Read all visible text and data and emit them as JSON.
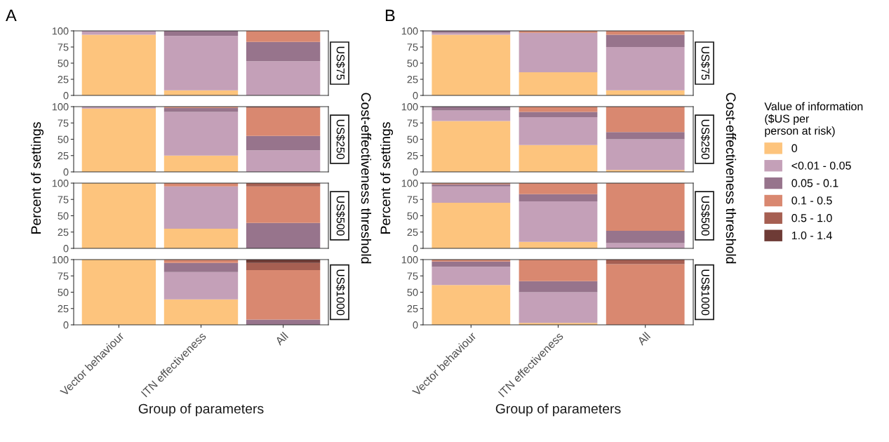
{
  "chart_data": [
    {
      "type": "bar",
      "stacked": true,
      "title": "A",
      "ylabel": "Percent of settings",
      "y2label": "Cost-effectiveness threshold",
      "annotations": [
        "US$75"
      ],
      "categories": [
        null,
        null,
        null
      ],
      "ylim": [
        0,
        100
      ],
      "yticks": [
        0,
        25,
        50,
        75,
        100
      ],
      "tick_labels": "y",
      "series": [
        {
          "color": "#fdc47d",
          "values": [
            94,
            8,
            0
          ]
        },
        {
          "color": "#c4a0b8",
          "values": [
            6,
            84,
            53
          ]
        },
        {
          "color": "#97748c",
          "values": [
            0,
            8,
            30
          ]
        },
        {
          "color": "#d98870",
          "values": [
            0,
            0,
            17
          ]
        },
        {
          "color": "#a65f52",
          "values": [
            0,
            0,
            0
          ]
        },
        {
          "color": "#6e3b36",
          "values": [
            0,
            0,
            0
          ]
        }
      ]
    },
    {
      "type": "bar",
      "stacked": true,
      "annotations": [
        "US$250"
      ],
      "categories": [
        null,
        null,
        null
      ],
      "ylim": [
        0,
        100
      ],
      "yticks": [
        0,
        25,
        50,
        75,
        100
      ],
      "tick_labels": "y",
      "series": [
        {
          "color": "#fdc47d",
          "values": [
            97,
            25,
            0
          ]
        },
        {
          "color": "#c4a0b8",
          "values": [
            3,
            67,
            33
          ]
        },
        {
          "color": "#97748c",
          "values": [
            0,
            6,
            22
          ]
        },
        {
          "color": "#d98870",
          "values": [
            0,
            2,
            43
          ]
        },
        {
          "color": "#a65f52",
          "values": [
            0,
            0,
            2
          ]
        },
        {
          "color": "#6e3b36",
          "values": [
            0,
            0,
            0
          ]
        }
      ]
    },
    {
      "type": "bar",
      "stacked": true,
      "annotations": [
        "US$500"
      ],
      "categories": [
        null,
        null,
        null
      ],
      "ylim": [
        0,
        100
      ],
      "yticks": [
        0,
        25,
        50,
        75,
        100
      ],
      "tick_labels": "y",
      "series": [
        {
          "color": "#fdc47d",
          "values": [
            100,
            30,
            0
          ]
        },
        {
          "color": "#c4a0b8",
          "values": [
            0,
            65,
            0
          ]
        },
        {
          "color": "#97748c",
          "values": [
            0,
            0,
            39
          ]
        },
        {
          "color": "#d98870",
          "values": [
            0,
            5,
            56
          ]
        },
        {
          "color": "#a65f52",
          "values": [
            0,
            0,
            5
          ]
        },
        {
          "color": "#6e3b36",
          "values": [
            0,
            0,
            0
          ]
        }
      ]
    },
    {
      "type": "bar",
      "stacked": true,
      "xlabel": "Group of parameters",
      "annotations": [
        "US$1000"
      ],
      "categories": [
        "Vector behaviour",
        "ITN effectiveness",
        "All"
      ],
      "ylim": [
        0,
        100
      ],
      "yticks": [
        0,
        25,
        50,
        75,
        100
      ],
      "series": [
        {
          "color": "#fdc47d",
          "values": [
            100,
            39,
            0
          ]
        },
        {
          "color": "#c4a0b8",
          "values": [
            0,
            42,
            0
          ]
        },
        {
          "color": "#97748c",
          "values": [
            0,
            14,
            8
          ]
        },
        {
          "color": "#d98870",
          "values": [
            0,
            5,
            76
          ]
        },
        {
          "color": "#a65f52",
          "values": [
            0,
            0,
            11
          ]
        },
        {
          "color": "#6e3b36",
          "values": [
            0,
            0,
            5
          ]
        }
      ]
    },
    {
      "type": "bar",
      "stacked": true,
      "title": "B",
      "ylabel": "Percent of settings",
      "y2label": "Cost-effectiveness threshold",
      "annotations": [
        "US$75"
      ],
      "categories": [
        null,
        null,
        null
      ],
      "ylim": [
        0,
        100
      ],
      "yticks": [
        0,
        25,
        50,
        75,
        100
      ],
      "tick_labels": "y",
      "series": [
        {
          "color": "#fdc47d",
          "values": [
            94,
            36,
            8
          ]
        },
        {
          "color": "#c4a0b8",
          "values": [
            3,
            61,
            67
          ]
        },
        {
          "color": "#97748c",
          "values": [
            3,
            0,
            19
          ]
        },
        {
          "color": "#d98870",
          "values": [
            0,
            3,
            6
          ]
        },
        {
          "color": "#a65f52",
          "values": [
            0,
            0,
            0
          ]
        },
        {
          "color": "#6e3b36",
          "values": [
            0,
            0,
            0
          ]
        }
      ]
    },
    {
      "type": "bar",
      "stacked": true,
      "legend": "right",
      "legend_title": "Value of information\n($US per\nperson at risk)",
      "annotations": [
        "US$250"
      ],
      "categories": [
        null,
        null,
        null
      ],
      "ylim": [
        0,
        100
      ],
      "yticks": [
        0,
        25,
        50,
        75,
        100
      ],
      "tick_labels": "y",
      "series": [
        {
          "name": "0",
          "color": "#fdc47d",
          "values": [
            78,
            41,
            3
          ]
        },
        {
          "name": "<0.01 - 0.05",
          "color": "#c4a0b8",
          "values": [
            16,
            43,
            47
          ]
        },
        {
          "name": "0.05 - 0.1",
          "color": "#97748c",
          "values": [
            6,
            8,
            11
          ]
        },
        {
          "name": "0.1 - 0.5",
          "color": "#d98870",
          "values": [
            0,
            8,
            39
          ]
        },
        {
          "name": "0.5 - 1.0",
          "color": "#a65f52",
          "values": [
            0,
            0,
            0
          ]
        },
        {
          "name": "1.0 - 1.4",
          "color": "#6e3b36",
          "values": [
            0,
            0,
            0
          ]
        }
      ]
    },
    {
      "type": "bar",
      "stacked": true,
      "annotations": [
        "US$500"
      ],
      "categories": [
        null,
        null,
        null
      ],
      "ylim": [
        0,
        100
      ],
      "yticks": [
        0,
        25,
        50,
        75,
        100
      ],
      "tick_labels": "y",
      "series": [
        {
          "color": "#fdc47d",
          "values": [
            70,
            10,
            0
          ]
        },
        {
          "color": "#c4a0b8",
          "values": [
            25,
            62,
            8
          ]
        },
        {
          "color": "#97748c",
          "values": [
            3,
            11,
            19
          ]
        },
        {
          "color": "#d98870",
          "values": [
            2,
            17,
            73
          ]
        },
        {
          "color": "#a65f52",
          "values": [
            0,
            0,
            0
          ]
        },
        {
          "color": "#6e3b36",
          "values": [
            0,
            0,
            0
          ]
        }
      ]
    },
    {
      "type": "bar",
      "stacked": true,
      "xlabel": "Group of parameters",
      "annotations": [
        "US$1000"
      ],
      "categories": [
        "Vector behaviour",
        "ITN effectiveness",
        "All"
      ],
      "ylim": [
        0,
        100
      ],
      "yticks": [
        0,
        25,
        50,
        75,
        100
      ],
      "series": [
        {
          "color": "#fdc47d",
          "values": [
            61,
            3,
            0
          ]
        },
        {
          "color": "#c4a0b8",
          "values": [
            28,
            47,
            0
          ]
        },
        {
          "color": "#97748c",
          "values": [
            8,
            17,
            0
          ]
        },
        {
          "color": "#d98870",
          "values": [
            3,
            33,
            93
          ]
        },
        {
          "color": "#a65f52",
          "values": [
            0,
            0,
            7
          ]
        },
        {
          "color": "#6e3b36",
          "values": [
            0,
            0,
            0
          ]
        }
      ]
    }
  ]
}
